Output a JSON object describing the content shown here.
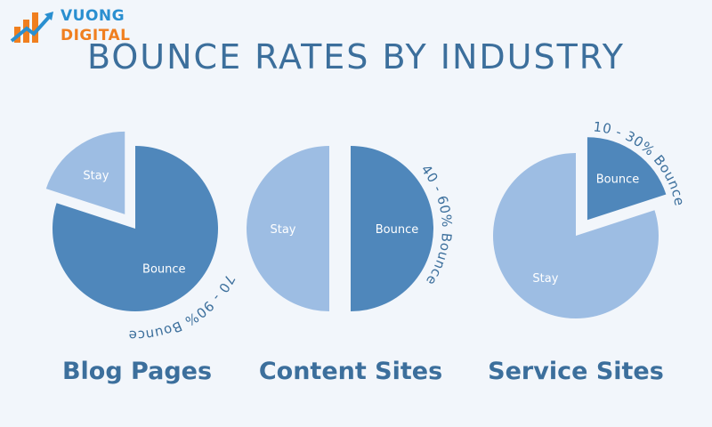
{
  "logo": {
    "line1": "VUONG",
    "line2": "DIGITAL"
  },
  "title": "BOUNCE RATES BY INDUSTRY",
  "colors": {
    "bounce": "#4f87bb",
    "stay": "#9dbde3",
    "text": "#3c6f9c",
    "background": "#f2f6fb"
  },
  "chart_data": [
    {
      "type": "pie",
      "title": "Blog Pages",
      "slices": [
        {
          "label": "Bounce",
          "value": 80
        },
        {
          "label": "Stay",
          "value": 20
        }
      ],
      "annotation": "70 - 90% Bounce"
    },
    {
      "type": "pie",
      "title": "Content Sites",
      "slices": [
        {
          "label": "Bounce",
          "value": 50
        },
        {
          "label": "Stay",
          "value": 50
        }
      ],
      "annotation": "40 - 60% Bounce"
    },
    {
      "type": "pie",
      "title": "Service Sites",
      "slices": [
        {
          "label": "Bounce",
          "value": 20
        },
        {
          "label": "Stay",
          "value": 80
        }
      ],
      "annotation": "10 - 30% Bounce"
    }
  ]
}
